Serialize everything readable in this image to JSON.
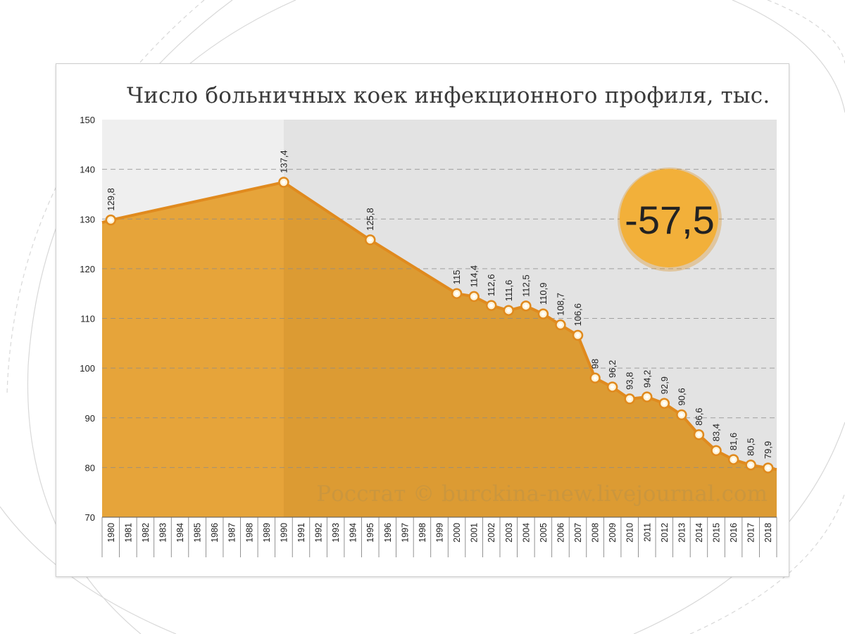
{
  "chart_data": {
    "type": "area",
    "title": "Число больничных коек инфекционного профиля, тыс.",
    "xlabel": "",
    "ylabel": "",
    "ylim": [
      70,
      150
    ],
    "yticks": [
      70,
      80,
      90,
      100,
      110,
      120,
      130,
      140,
      150
    ],
    "categories": [
      "1980",
      "1981",
      "1982",
      "1983",
      "1984",
      "1985",
      "1986",
      "1987",
      "1988",
      "1989",
      "1990",
      "1991",
      "1992",
      "1993",
      "1994",
      "1995",
      "1996",
      "1997",
      "1998",
      "1999",
      "2000",
      "2001",
      "2002",
      "2003",
      "2004",
      "2005",
      "2006",
      "2007",
      "2008",
      "2009",
      "2010",
      "2011",
      "2012",
      "2013",
      "2014",
      "2015",
      "2016",
      "2017",
      "2018"
    ],
    "points": [
      {
        "x": "1980",
        "value": 129.8,
        "label": "129,8"
      },
      {
        "x": "1990",
        "value": 137.4,
        "label": "137,4"
      },
      {
        "x": "1995",
        "value": 125.8,
        "label": "125,8"
      },
      {
        "x": "2000",
        "value": 115,
        "label": "115"
      },
      {
        "x": "2001",
        "value": 114.4,
        "label": "114,4"
      },
      {
        "x": "2002",
        "value": 112.6,
        "label": "112,6"
      },
      {
        "x": "2003",
        "value": 111.6,
        "label": "111,6"
      },
      {
        "x": "2004",
        "value": 112.5,
        "label": "112,5"
      },
      {
        "x": "2005",
        "value": 110.9,
        "label": "110,9"
      },
      {
        "x": "2006",
        "value": 108.7,
        "label": "108,7"
      },
      {
        "x": "2007",
        "value": 106.6,
        "label": "106,6"
      },
      {
        "x": "2008",
        "value": 98,
        "label": "98"
      },
      {
        "x": "2009",
        "value": 96.2,
        "label": "96,2"
      },
      {
        "x": "2010",
        "value": 93.8,
        "label": "93,8"
      },
      {
        "x": "2011",
        "value": 94.2,
        "label": "94,2"
      },
      {
        "x": "2012",
        "value": 92.9,
        "label": "92,9"
      },
      {
        "x": "2013",
        "value": 90.6,
        "label": "90,6"
      },
      {
        "x": "2014",
        "value": 86.6,
        "label": "86,6"
      },
      {
        "x": "2015",
        "value": 83.4,
        "label": "83,4"
      },
      {
        "x": "2016",
        "value": 81.6,
        "label": "81,6"
      },
      {
        "x": "2017",
        "value": 80.5,
        "label": "80,5"
      },
      {
        "x": "2018",
        "value": 79.9,
        "label": "79,9"
      }
    ],
    "badge": "-57,5",
    "watermark": "Росстат © burckina-new.livejournal.com",
    "grid": true
  },
  "colors": {
    "area_fill": "#e6a43a",
    "area_fill_dark": "#dc9b33",
    "line": "#e08a1e",
    "plot_bg": "#efefef",
    "plot_bg_right": "#e3e3e3",
    "badge": "#f2b03a"
  }
}
